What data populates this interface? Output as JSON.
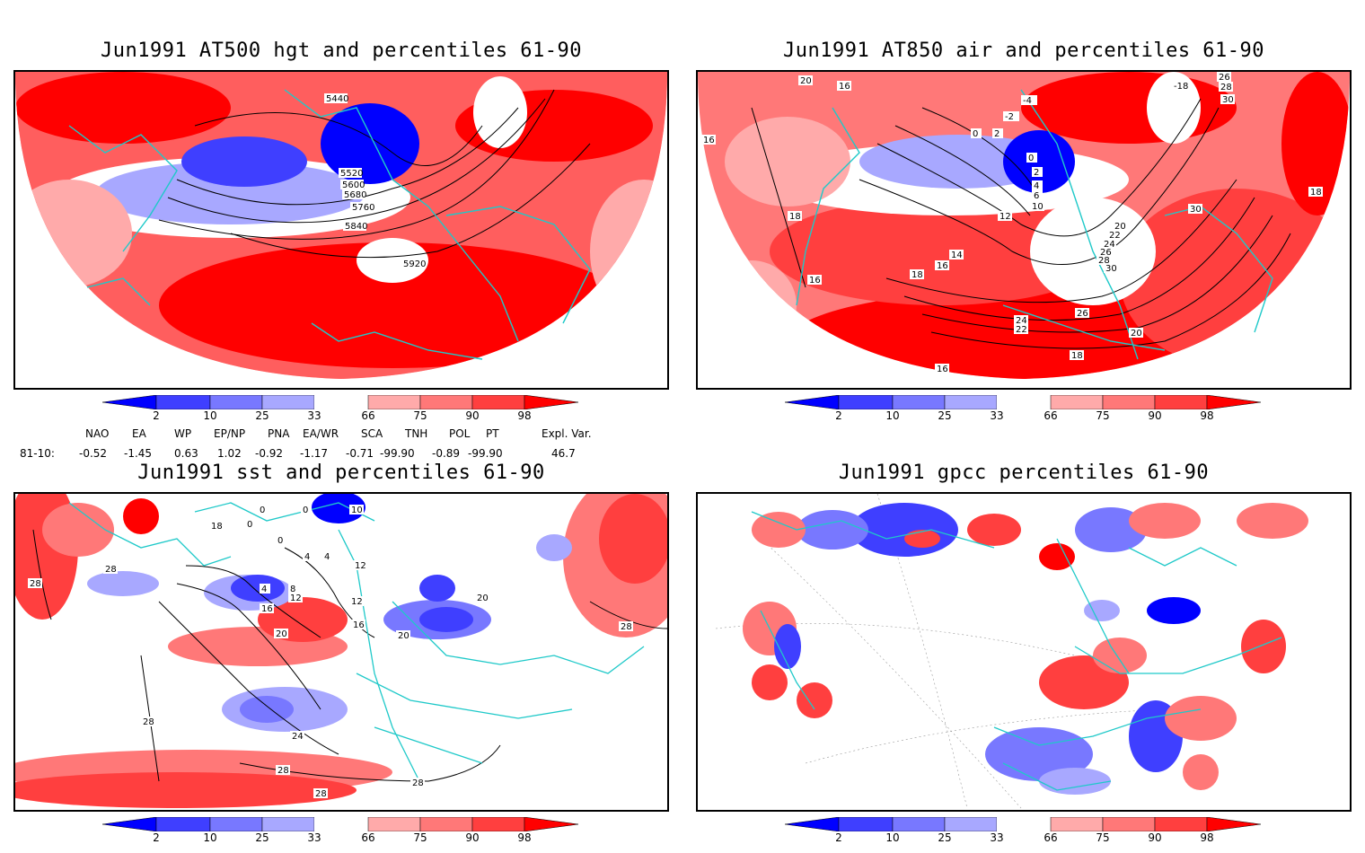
{
  "panels": {
    "p1": {
      "title": "Jun1991 AT500 hgt and percentiles 61-90",
      "contour_labels": [
        "5440",
        "5520",
        "5600",
        "5680",
        "5760",
        "5840",
        "5920"
      ]
    },
    "p2": {
      "title": "Jun1991 AT850 air and percentiles 61-90",
      "contour_labels": [
        "20",
        "16",
        "-4",
        "-2",
        "0",
        "2",
        "-18",
        "26",
        "28",
        "30",
        "16",
        "0",
        "2",
        "4",
        "6",
        "10",
        "12",
        "18",
        "30",
        "18",
        "20",
        "22",
        "24",
        "26",
        "28",
        "30",
        "14",
        "16",
        "18",
        "16",
        "26",
        "24",
        "22",
        "20",
        "18",
        "16"
      ]
    },
    "p3": {
      "title": "Jun1991 sst and percentiles 61-90",
      "contour_labels": [
        "28",
        "28",
        "0",
        "0",
        "0",
        "0",
        "4",
        "4",
        "4",
        "8",
        "12",
        "12",
        "16",
        "16",
        "20",
        "20",
        "20",
        "24",
        "28",
        "28",
        "28",
        "28",
        "28",
        "10",
        "12",
        "18"
      ]
    },
    "p4": {
      "title": "Jun1991 gpcc percentiles 61-90"
    }
  },
  "colorbar": {
    "labels": [
      "2",
      "10",
      "25",
      "33",
      "66",
      "75",
      "90",
      "98"
    ],
    "colors": [
      "#0000ff",
      "#3f3fff",
      "#7878ff",
      "#a8a8ff",
      "#ffffff",
      "#ffaaaa",
      "#ff7878",
      "#ff3f3f",
      "#ff0000"
    ]
  },
  "indices": {
    "headers": [
      "NAO",
      "EA",
      "WP",
      "EP/NP",
      "PNA",
      "EA/WR",
      "SCA",
      "TNH",
      "POL",
      "PT",
      "Expl. Var."
    ],
    "row_label": "81-10:",
    "values": [
      "-0.52",
      "-1.45",
      "0.63",
      "1.02",
      "-0.92",
      "-1.17",
      "-0.71",
      "-99.90",
      "-0.89",
      "-99.90",
      "46.7"
    ]
  }
}
